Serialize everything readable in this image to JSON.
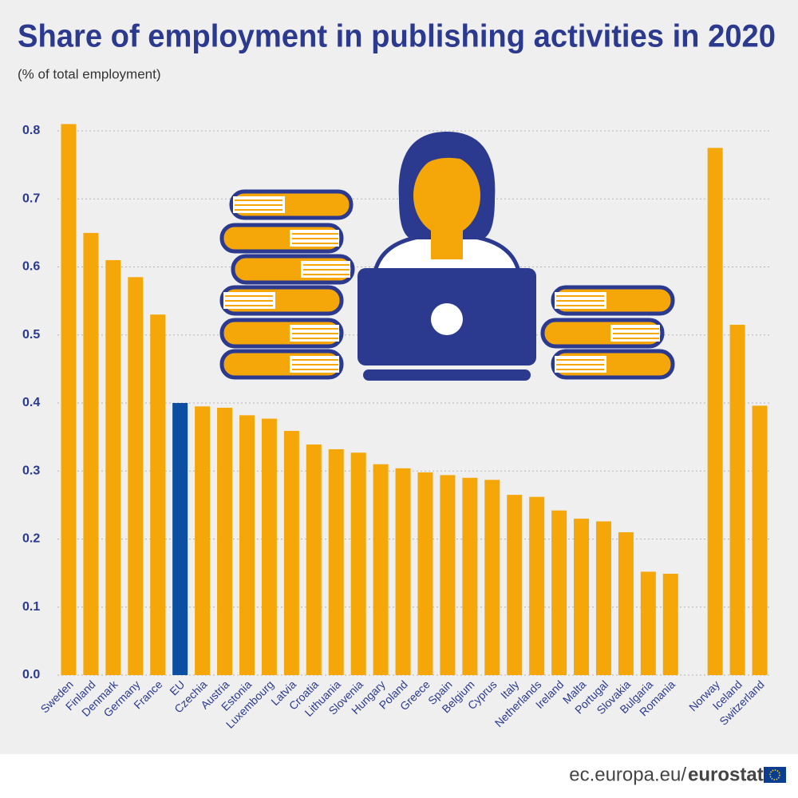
{
  "chart_data": {
    "type": "bar",
    "title": "Share of employment in publishing activities in 2020",
    "subtitle": "(% of total employment)",
    "categories": [
      "Sweden",
      "Finland",
      "Denmark",
      "Germany",
      "France",
      "EU",
      "Czechia",
      "Austria",
      "Estonia",
      "Luxembourg",
      "Latvia",
      "Croatia",
      "Lithuania",
      "Slovenia",
      "Hungary",
      "Poland",
      "Greece",
      "Spain",
      "Belgium",
      "Cyprus",
      "Italy",
      "Netherlands",
      "Ireland",
      "Malta",
      "Portugal",
      "Slovakia",
      "Bulgaria",
      "Romania",
      null,
      "Norway",
      "Iceland",
      "Switzerland"
    ],
    "values": [
      0.81,
      0.65,
      0.61,
      0.585,
      0.53,
      0.4,
      0.395,
      0.393,
      0.382,
      0.377,
      0.359,
      0.339,
      0.332,
      0.327,
      0.31,
      0.304,
      0.298,
      0.294,
      0.29,
      0.287,
      0.265,
      0.262,
      0.242,
      0.23,
      0.226,
      0.21,
      0.152,
      0.149,
      null,
      0.775,
      0.515,
      0.396
    ],
    "color": "#f5a70a",
    "highlight": {
      "category_index": 5,
      "color": "#0b4ea2"
    },
    "ylim": [
      0,
      0.8
    ],
    "yticks": [
      {
        "value": 0,
        "label": "0.0"
      },
      0.1,
      0.2,
      0.3,
      0.4,
      0.5,
      0.6,
      0.7,
      0.8
    ],
    "grid": true,
    "footer": {
      "site": "ec.europa.eu/",
      "brand": "eurostat"
    }
  }
}
